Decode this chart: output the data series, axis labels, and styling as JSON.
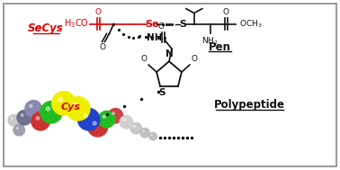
{
  "bg_color": "#ffffff",
  "border_color": "#888888",
  "red": "#dd0000",
  "black": "#111111",
  "secys_label": "SeCys",
  "pen_label": "Pen",
  "polypeptide_label": "Polypeptide",
  "cys_label": "Cys",
  "fig_width": 3.78,
  "fig_height": 1.89,
  "dpi": 100,
  "balls": [
    [
      14,
      55,
      7,
      "#c8c8c8",
      2
    ],
    [
      20,
      44,
      7,
      "#a0a0b0",
      2
    ],
    [
      26,
      58,
      9,
      "#707090",
      3
    ],
    [
      36,
      68,
      10,
      "#8888b0",
      3
    ],
    [
      44,
      54,
      11,
      "#cc3333",
      4
    ],
    [
      56,
      64,
      13,
      "#22bb22",
      5
    ],
    [
      70,
      74,
      14,
      "#eeee00",
      6
    ],
    [
      86,
      68,
      14,
      "#eeee00",
      6
    ],
    [
      98,
      56,
      13,
      "#2244cc",
      5
    ],
    [
      108,
      48,
      12,
      "#cc3333",
      4
    ],
    [
      118,
      56,
      10,
      "#22bb22",
      4
    ],
    [
      128,
      60,
      9,
      "#cc4444",
      3
    ],
    [
      140,
      53,
      8,
      "#d0d0d0",
      3
    ],
    [
      151,
      46,
      7,
      "#c8c8c8",
      2
    ],
    [
      161,
      41,
      6,
      "#c0c0c0",
      2
    ],
    [
      170,
      37,
      5,
      "#c0c0c0",
      2
    ]
  ]
}
